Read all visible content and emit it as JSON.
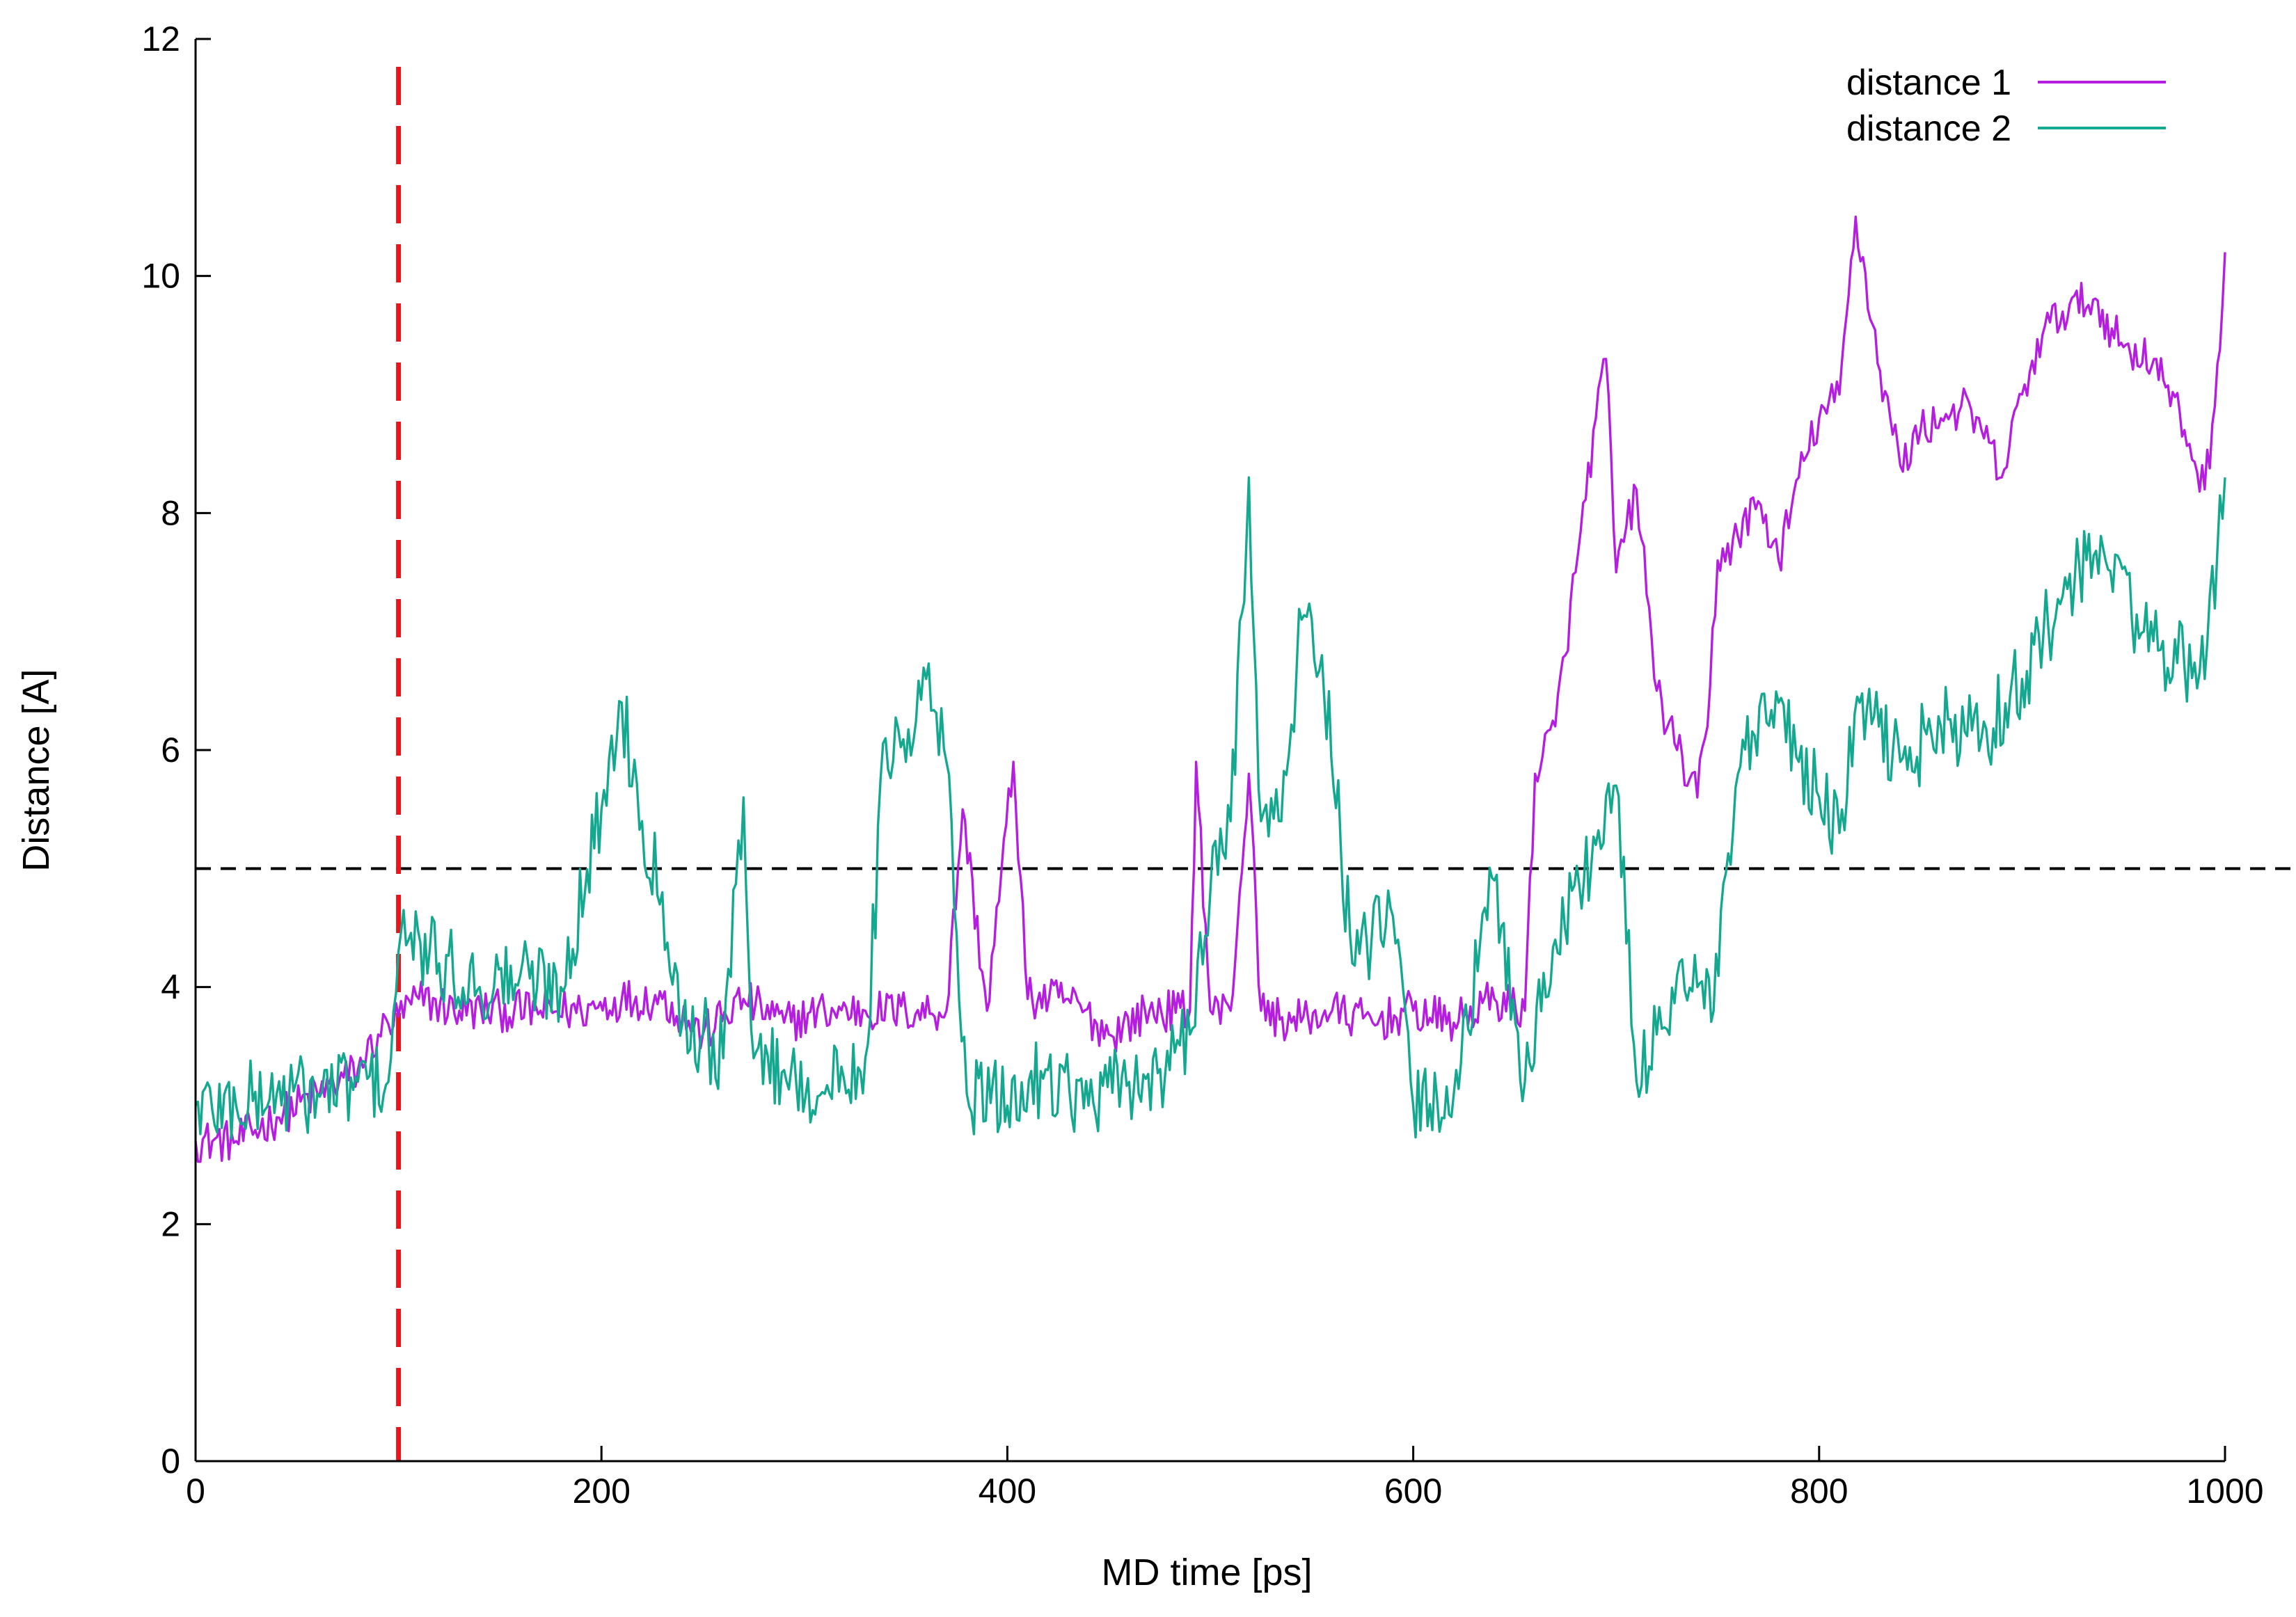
{
  "chart_data": {
    "type": "line",
    "xlabel": "MD time [ps]",
    "ylabel": "Distance [A]",
    "xlim": [
      0,
      1000
    ],
    "ylim": [
      0,
      12
    ],
    "xticks": [
      0,
      200,
      400,
      600,
      800,
      1000
    ],
    "yticks": [
      0,
      2,
      4,
      6,
      8,
      10,
      12
    ],
    "grid": false,
    "legend_position": "top-right",
    "reference_lines": [
      {
        "orientation": "horizontal",
        "value": 5,
        "color": "#000000",
        "style": "dashed"
      },
      {
        "orientation": "vertical",
        "value": 100,
        "color": "#e8161b",
        "style": "dashed"
      }
    ],
    "series": [
      {
        "name": "distance 1",
        "color": "#b51ee0",
        "x": [
          0,
          20,
          40,
          60,
          80,
          90,
          100,
          110,
          130,
          150,
          170,
          190,
          210,
          230,
          250,
          270,
          290,
          310,
          330,
          350,
          370,
          378,
          390,
          403,
          410,
          430,
          450,
          470,
          490,
          493,
          500,
          510,
          519,
          525,
          540,
          560,
          580,
          600,
          620,
          640,
          655,
          660,
          670,
          680,
          690,
          695,
          700,
          710,
          720,
          730,
          740,
          745,
          750,
          760,
          770,
          780,
          790,
          800,
          810,
          818,
          830,
          840,
          850,
          860,
          870,
          880,
          890,
          900,
          910,
          920,
          935,
          950,
          965,
          980,
          990,
          995,
          1000
        ],
        "y": [
          2.7,
          2.7,
          2.9,
          3.1,
          3.3,
          3.6,
          3.75,
          3.9,
          3.8,
          3.8,
          3.8,
          3.8,
          3.9,
          3.9,
          3.6,
          3.9,
          3.7,
          3.8,
          3.8,
          3.8,
          3.8,
          5.5,
          3.8,
          5.9,
          3.9,
          3.9,
          3.6,
          3.8,
          3.8,
          5.9,
          3.8,
          3.8,
          5.8,
          3.8,
          3.7,
          3.8,
          3.7,
          3.8,
          3.7,
          3.9,
          3.8,
          5.8,
          6.2,
          7.5,
          8.8,
          9.3,
          7.5,
          8.2,
          6.5,
          6.0,
          5.6,
          6.2,
          7.6,
          7.8,
          8.1,
          7.6,
          8.3,
          8.8,
          9.0,
          10.5,
          9.2,
          8.4,
          8.7,
          8.8,
          8.9,
          8.7,
          8.3,
          9.0,
          9.5,
          9.7,
          9.8,
          9.4,
          9.3,
          8.7,
          8.2,
          8.9,
          10.2
        ]
      },
      {
        "name": "distance 2",
        "color": "#14a890",
        "x": [
          0,
          20,
          40,
          60,
          80,
          95,
          100,
          105,
          120,
          140,
          160,
          180,
          200,
          210,
          220,
          230,
          240,
          250,
          260,
          270,
          275,
          290,
          310,
          330,
          340,
          350,
          360,
          370,
          380,
          400,
          420,
          440,
          460,
          480,
          490,
          500,
          510,
          519,
          525,
          535,
          545,
          555,
          570,
          590,
          600,
          620,
          640,
          655,
          670,
          690,
          700,
          710,
          720,
          730,
          740,
          748,
          760,
          780,
          790,
          800,
          810,
          820,
          840,
          860,
          880,
          900,
          920,
          940,
          960,
          980,
          990,
          1000
        ],
        "y": [
          3.0,
          3.0,
          3.1,
          3.1,
          3.2,
          3.2,
          4.3,
          4.4,
          4.2,
          4.0,
          4.1,
          4.0,
          5.5,
          6.4,
          5.4,
          4.8,
          3.7,
          3.6,
          3.4,
          5.6,
          3.4,
          3.3,
          3.1,
          3.4,
          6.1,
          5.9,
          6.6,
          5.9,
          3.1,
          3.0,
          3.3,
          3.0,
          3.2,
          3.3,
          3.6,
          4.8,
          5.4,
          8.3,
          5.4,
          5.4,
          7.1,
          6.8,
          4.2,
          4.6,
          3.0,
          3.1,
          4.9,
          3.2,
          4.4,
          5.2,
          5.7,
          3.2,
          3.6,
          4.1,
          4.0,
          3.8,
          5.8,
          6.4,
          5.9,
          5.6,
          5.3,
          6.4,
          5.9,
          6.2,
          6.1,
          6.6,
          7.3,
          7.7,
          7.0,
          6.7,
          6.6,
          8.3
        ]
      }
    ]
  }
}
